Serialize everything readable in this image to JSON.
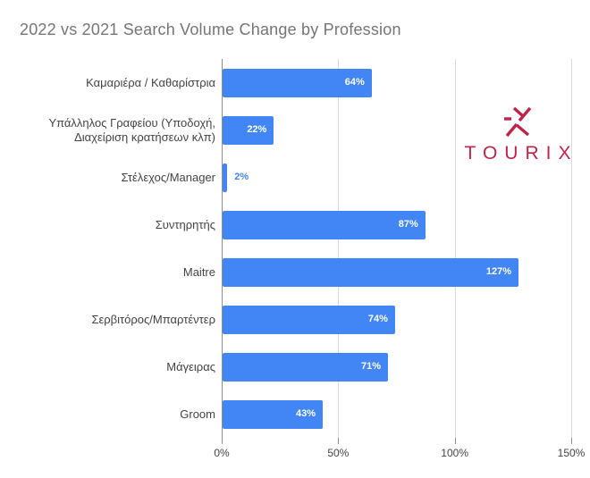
{
  "title": "2022 vs 2021 Search Volume Change by Profession",
  "logo": {
    "wordmark": "TOURIX",
    "symbol": "tourix-asterisk-mark"
  },
  "colors": {
    "bar": "#4285F4",
    "title-text": "#757575",
    "axis-text": "#444444",
    "gridline": "#DADADA",
    "baseline": "#8E8E8E",
    "value-inside": "#FFFFFF",
    "value-outside": "#4285F4",
    "logo": "#C0234A"
  },
  "chart_data": {
    "type": "bar",
    "orientation": "horizontal",
    "title": "2022 vs 2021 Search Volume Change by Profession",
    "xlabel": "",
    "ylabel": "",
    "categories": [
      "Καμαριέρα / Καθαρίστρια",
      "Υπάλληλος Γραφείου (Υποδοχή, Διαχείριση κρατήσεων κλπ)",
      "Στέλεχος/Manager",
      "Συντηρητής",
      "Maitre",
      "Σερβιτόρος/Μπαρτέντερ",
      "Μάγειρας",
      "Groom"
    ],
    "values": [
      64,
      22,
      2,
      87,
      127,
      74,
      71,
      43
    ],
    "data_labels": [
      "64%",
      "22%",
      "2%",
      "87%",
      "127%",
      "74%",
      "71%",
      "43%"
    ],
    "x_ticks": [
      "0%",
      "50%",
      "100%",
      "150%"
    ],
    "x_tick_values": [
      0,
      50,
      100,
      150
    ],
    "xlim": [
      0,
      150
    ],
    "grid": true,
    "legend": "none"
  }
}
